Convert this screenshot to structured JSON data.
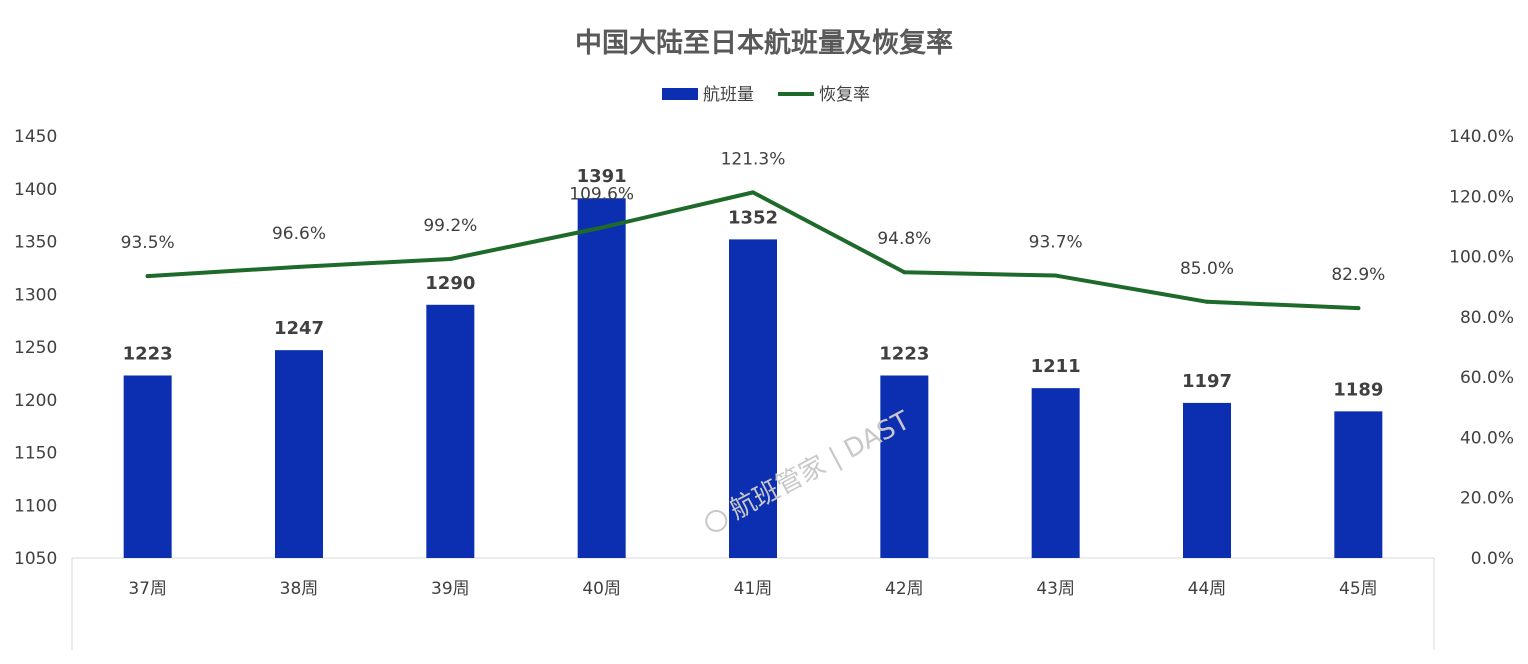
{
  "chart_data": {
    "type": "bar",
    "title": "中国大陆至日本航班量及恢复率",
    "categories": [
      "37周",
      "38周",
      "39周",
      "40周",
      "41周",
      "42周",
      "43周",
      "44周",
      "45周"
    ],
    "series": [
      {
        "name": "航班量",
        "type": "bar",
        "axis": "left",
        "color": "#0b2fb0",
        "values": [
          1223,
          1247,
          1290,
          1391,
          1352,
          1223,
          1211,
          1197,
          1189
        ],
        "labels": [
          "1223",
          "1247",
          "1290",
          "1391",
          "1352",
          "1223",
          "1211",
          "1197",
          "1189"
        ]
      },
      {
        "name": "恢复率",
        "type": "line",
        "axis": "right",
        "color": "#1e6a2a",
        "values": [
          93.5,
          96.6,
          99.2,
          109.6,
          121.3,
          94.8,
          93.7,
          85.0,
          82.9
        ],
        "labels": [
          "93.5%",
          "96.6%",
          "99.2%",
          "109.6%",
          "121.3%",
          "94.8%",
          "93.7%",
          "85.0%",
          "82.9%"
        ]
      }
    ],
    "y_left": {
      "min": 1050,
      "max": 1450,
      "ticks": [
        "1450",
        "1400",
        "1350",
        "1300",
        "1250",
        "1200",
        "1150",
        "1100",
        "1050"
      ]
    },
    "y_right": {
      "min": 0,
      "max": 140,
      "ticks": [
        "140.0%",
        "120.0%",
        "100.0%",
        "80.0%",
        "60.0%",
        "40.0%",
        "20.0%",
        "0.0%"
      ]
    },
    "legend_position": "top-center",
    "grid": false
  },
  "watermark": {
    "text": "航班管家 | DAST"
  }
}
